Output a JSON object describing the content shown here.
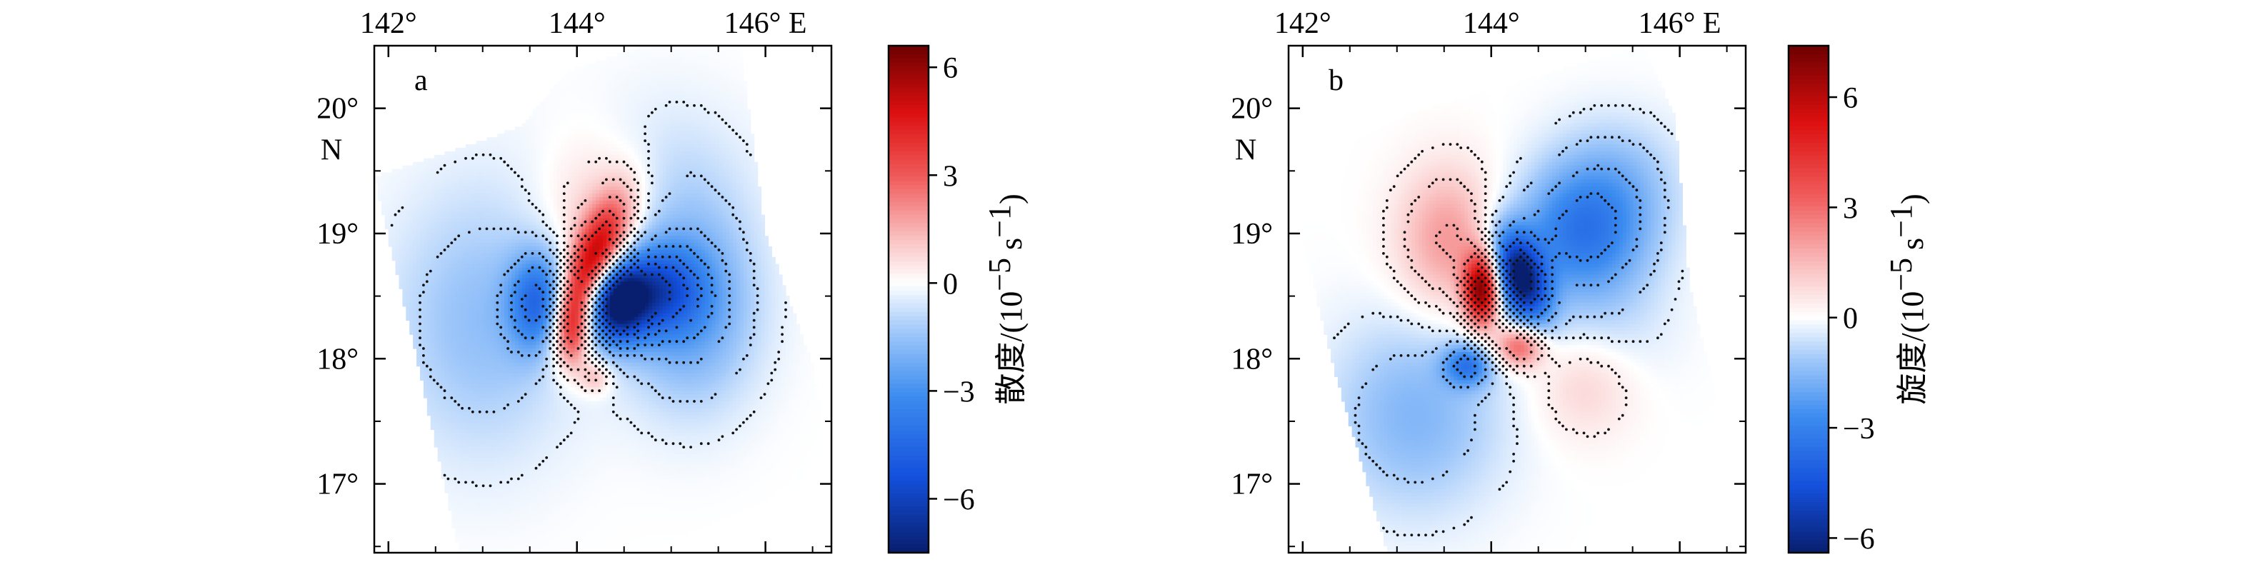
{
  "chart_data": [
    {
      "type": "heatmap",
      "panel_label": "a",
      "x_tick_labels": [
        "142°",
        "144°",
        "146° E"
      ],
      "x_tick_values": [
        142,
        144,
        146
      ],
      "y_tick_labels": [
        "20°",
        "19°",
        "18°",
        "17°"
      ],
      "y_tick_values": [
        20,
        19,
        18,
        17
      ],
      "y_axis_suffix": "N",
      "xlim": [
        141.85,
        146.7
      ],
      "ylim": [
        16.45,
        20.5
      ],
      "colorbar": {
        "label_cjk": "散度",
        "label_unit": "/(10",
        "label_exp1": "−5",
        "label_mid": " s",
        "label_exp2": "−1",
        "label_end": ")",
        "tick_labels": [
          "6",
          "3",
          "0",
          "−3",
          "−6"
        ],
        "tick_values": [
          6,
          3,
          0,
          -3,
          -6
        ],
        "range": [
          -7.5,
          6.6
        ]
      },
      "coverage_polygon": [
        [
          141.85,
          19.45
        ],
        [
          143.4,
          19.85
        ],
        [
          143.9,
          20.3
        ],
        [
          144.9,
          20.55
        ],
        [
          145.7,
          20.7
        ],
        [
          146.0,
          19.0
        ],
        [
          146.5,
          17.95
        ],
        [
          146.7,
          17.1
        ],
        [
          144.7,
          16.45
        ],
        [
          142.75,
          16.45
        ],
        [
          142.3,
          18.0
        ]
      ],
      "features": [
        {
          "lon": 144.15,
          "lat": 18.7,
          "amp": 6.5,
          "sx": 0.17,
          "sy": 0.4,
          "rot": -30
        },
        {
          "lon": 144.25,
          "lat": 19.15,
          "amp": 1.6,
          "sx": 0.45,
          "sy": 0.45,
          "rot": 0
        },
        {
          "lon": 143.95,
          "lat": 18.2,
          "amp": 3.0,
          "sx": 0.13,
          "sy": 0.22,
          "rot": 0
        },
        {
          "lon": 144.2,
          "lat": 17.85,
          "amp": 1.5,
          "sx": 0.12,
          "sy": 0.1,
          "rot": 0
        },
        {
          "lon": 144.4,
          "lat": 18.45,
          "amp": -6.8,
          "sx": 0.22,
          "sy": 0.22,
          "rot": 0
        },
        {
          "lon": 144.8,
          "lat": 18.55,
          "amp": -4.2,
          "sx": 0.35,
          "sy": 0.25,
          "rot": 0
        },
        {
          "lon": 143.6,
          "lat": 18.45,
          "amp": -3.8,
          "sx": 0.22,
          "sy": 0.28,
          "rot": 0
        },
        {
          "lon": 145.2,
          "lat": 18.4,
          "amp": -2.5,
          "sx": 0.5,
          "sy": 0.55,
          "rot": 0
        },
        {
          "lon": 143.0,
          "lat": 18.3,
          "amp": -1.6,
          "sx": 0.7,
          "sy": 0.75,
          "rot": 0
        },
        {
          "lon": 144.8,
          "lat": 19.4,
          "amp": -0.9,
          "sx": 0.7,
          "sy": 0.5,
          "rot": 0
        }
      ]
    },
    {
      "type": "heatmap",
      "panel_label": "b",
      "x_tick_labels": [
        "142°",
        "144°",
        "146° E"
      ],
      "x_tick_values": [
        142,
        144,
        146
      ],
      "y_tick_labels": [
        "20°",
        "19°",
        "18°",
        "17°"
      ],
      "y_tick_values": [
        20,
        19,
        18,
        17
      ],
      "y_axis_suffix": "N",
      "xlim": [
        141.85,
        146.7
      ],
      "ylim": [
        16.45,
        20.5
      ],
      "colorbar": {
        "label_cjk": "旋度",
        "label_unit": "/(10",
        "label_exp1": "−5",
        "label_mid": " s",
        "label_exp2": "−1",
        "label_end": ")",
        "tick_labels": [
          "6",
          "3",
          "0",
          "−3",
          "−6"
        ],
        "tick_values": [
          6,
          3,
          0,
          -3,
          -6
        ],
        "range": [
          -6.4,
          7.4
        ]
      },
      "coverage_polygon": [
        [
          141.85,
          19.45
        ],
        [
          143.1,
          19.95
        ],
        [
          144.7,
          20.3
        ],
        [
          145.6,
          20.5
        ],
        [
          145.95,
          19.95
        ],
        [
          146.1,
          18.6
        ],
        [
          146.55,
          17.15
        ],
        [
          146.7,
          16.9
        ],
        [
          144.8,
          16.45
        ],
        [
          142.9,
          16.45
        ],
        [
          142.3,
          18.0
        ]
      ],
      "features": [
        {
          "lon": 143.9,
          "lat": 18.55,
          "amp": 6.8,
          "sx": 0.13,
          "sy": 0.2,
          "rot": 0
        },
        {
          "lon": 143.55,
          "lat": 18.95,
          "amp": 2.2,
          "sx": 0.38,
          "sy": 0.4,
          "rot": 0
        },
        {
          "lon": 144.3,
          "lat": 18.1,
          "amp": 3.5,
          "sx": 0.18,
          "sy": 0.12,
          "rot": 0
        },
        {
          "lon": 145.0,
          "lat": 17.8,
          "amp": 1.1,
          "sx": 0.38,
          "sy": 0.3,
          "rot": 0
        },
        {
          "lon": 144.3,
          "lat": 18.65,
          "amp": -6.2,
          "sx": 0.18,
          "sy": 0.28,
          "rot": 30
        },
        {
          "lon": 144.95,
          "lat": 19.0,
          "amp": -3.0,
          "sx": 0.5,
          "sy": 0.35,
          "rot": 0
        },
        {
          "lon": 143.75,
          "lat": 17.95,
          "amp": -2.8,
          "sx": 0.18,
          "sy": 0.12,
          "rot": 0
        },
        {
          "lon": 143.2,
          "lat": 17.55,
          "amp": -1.6,
          "sx": 0.65,
          "sy": 0.55,
          "rot": 0
        },
        {
          "lon": 145.3,
          "lat": 19.45,
          "amp": -1.2,
          "sx": 0.5,
          "sy": 0.35,
          "rot": 0
        },
        {
          "lon": 145.2,
          "lat": 18.3,
          "amp": -0.7,
          "sx": 0.5,
          "sy": 0.4,
          "rot": 0
        }
      ]
    }
  ]
}
